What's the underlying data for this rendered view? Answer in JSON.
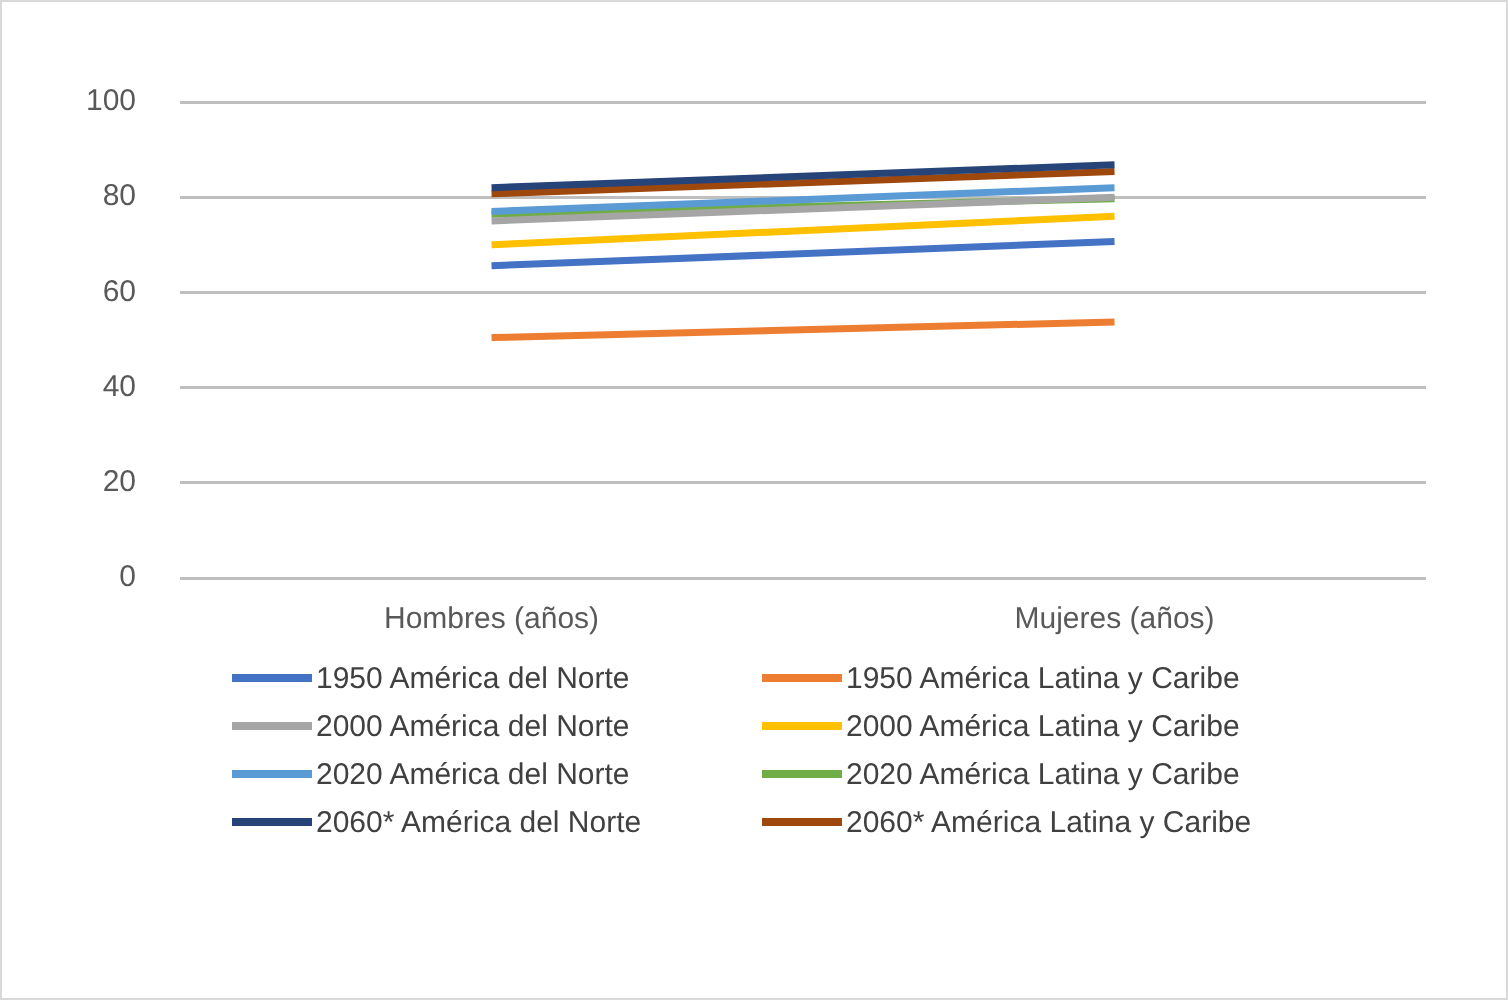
{
  "chart_data": {
    "type": "line",
    "categories": [
      "Hombres (años)",
      "Mujeres (años)"
    ],
    "series": [
      {
        "name": "1950 América del Norte",
        "color": "#4472c4",
        "values": [
          65.6,
          70.7
        ]
      },
      {
        "name": "1950 América Latina y Caribe",
        "color": "#ed7d31",
        "values": [
          50.5,
          53.8
        ]
      },
      {
        "name": "2000 América del Norte",
        "color": "#a5a5a5",
        "values": [
          75,
          80
        ]
      },
      {
        "name": "2000 América Latina y Caribe",
        "color": "#ffc000",
        "values": [
          70,
          76
        ]
      },
      {
        "name": "2020 América del Norte",
        "color": "#5b9bd5",
        "values": [
          77,
          82
        ]
      },
      {
        "name": "2020 América Latina y Caribe",
        "color": "#70ad47",
        "values": [
          76.4,
          79.7
        ]
      },
      {
        "name": "2060* América del Norte",
        "color": "#264478",
        "values": [
          82,
          86.8
        ]
      },
      {
        "name": "2060* América Latina y Caribe",
        "color": "#9e480e",
        "values": [
          80.7,
          85.4
        ]
      }
    ],
    "ylim": [
      0,
      100
    ],
    "yticks": [
      0,
      20,
      40,
      60,
      80,
      100
    ],
    "grid": "y",
    "legend": "bottom",
    "marker": "none",
    "line_style": "solid"
  }
}
